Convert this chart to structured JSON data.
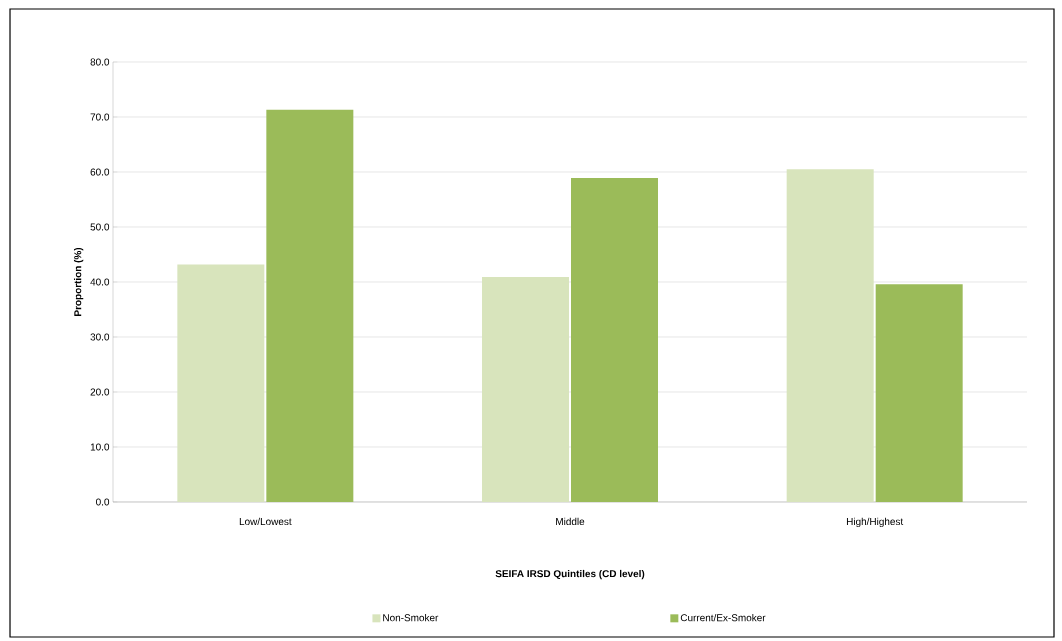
{
  "chart_data": {
    "type": "bar",
    "xlabel": "SEIFA IRSD Quintiles (CD level)",
    "ylabel": "Proportion (%)",
    "categories": [
      "Low/Lowest",
      "Middle",
      "High/Highest"
    ],
    "series": [
      {
        "name": "Non-Smoker",
        "color": "#d8e4bc",
        "values": [
          43.2,
          40.9,
          60.5
        ]
      },
      {
        "name": "Current/Ex-Smoker",
        "color": "#9bbb59",
        "values": [
          71.3,
          58.9,
          39.6
        ]
      }
    ],
    "ylim": [
      0,
      80
    ],
    "yticks": [
      {
        "value": 0,
        "label": "0.0"
      },
      {
        "value": 10,
        "label": "10.0"
      },
      {
        "value": 20,
        "label": "20.0"
      },
      {
        "value": 30,
        "label": "30.0"
      },
      {
        "value": 40,
        "label": "40.0"
      },
      {
        "value": 50,
        "label": "50.0"
      },
      {
        "value": 60,
        "label": "60.0"
      },
      {
        "value": 70,
        "label": "70.0"
      },
      {
        "value": 80,
        "label": "80.0"
      }
    ],
    "grid": "y",
    "legend": "bottom"
  }
}
